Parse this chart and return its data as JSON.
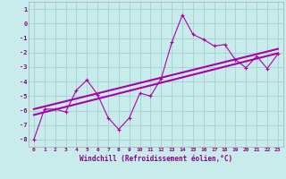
{
  "xlabel": "Windchill (Refroidissement éolien,°C)",
  "ylabel": "",
  "background_color": "#c8ecec",
  "grid_color": "#aad4d4",
  "line_color": "#aa00aa",
  "label_color": "#880088",
  "xlim": [
    -0.5,
    23.5
  ],
  "ylim": [
    -8.5,
    1.5
  ],
  "xticks": [
    0,
    1,
    2,
    3,
    4,
    5,
    6,
    7,
    8,
    9,
    10,
    11,
    12,
    13,
    14,
    15,
    16,
    17,
    18,
    19,
    20,
    21,
    22,
    23
  ],
  "yticks": [
    1,
    0,
    -1,
    -2,
    -3,
    -4,
    -5,
    -6,
    -7,
    -8
  ],
  "x_data": [
    0,
    1,
    2,
    3,
    4,
    5,
    6,
    7,
    8,
    9,
    10,
    11,
    12,
    13,
    14,
    15,
    16,
    17,
    18,
    19,
    20,
    21,
    22,
    23
  ],
  "y_zigzag": [
    -8.0,
    -5.9,
    -5.9,
    -6.1,
    -4.6,
    -3.9,
    -4.9,
    -6.5,
    -7.3,
    -6.5,
    -4.8,
    -5.0,
    -3.8,
    -1.3,
    0.6,
    -0.75,
    -1.1,
    -1.55,
    -1.45,
    -2.5,
    -3.05,
    -2.25,
    -3.1,
    -2.1
  ],
  "reg_line1_x": [
    0,
    23
  ],
  "reg_line1_y": [
    -6.3,
    -2.05
  ],
  "reg_line2_x": [
    0,
    23
  ],
  "reg_line2_y": [
    -5.9,
    -1.75
  ],
  "marker": "+"
}
